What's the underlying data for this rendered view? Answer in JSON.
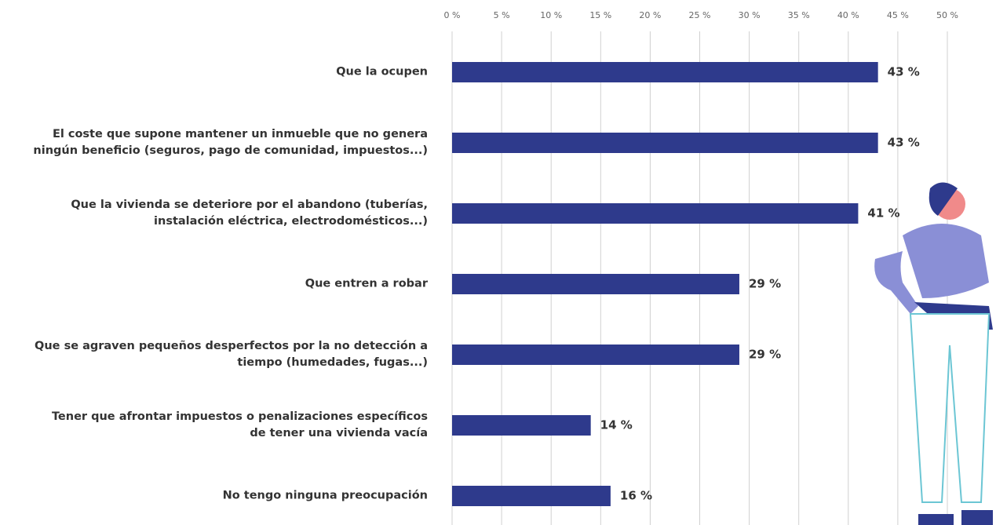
{
  "chart_data": {
    "type": "bar",
    "orientation": "horizontal",
    "categories": [
      "Que la ocupen",
      "El coste que supone mantener un inmueble que no genera\nningún beneficio (seguros, pago de comunidad, impuestos...)",
      "Que la vivienda se deteriore por el abandono (tuberías,\ninstalación eléctrica, electrodomésticos...)",
      "Que entren a robar",
      "Que se agraven pequeños desperfectos por la no detección a\ntiempo (humedades, fugas...)",
      "Tener que afrontar impuestos o penalizaciones específicos\nde tener una vivienda vacía",
      "No tengo ninguna preocupación"
    ],
    "values": [
      43,
      43,
      41,
      29,
      29,
      14,
      16
    ],
    "value_labels": [
      "43 %",
      "43 %",
      "41 %",
      "29 %",
      "29 %",
      "14 %",
      "16 %"
    ],
    "color": "#2e3a8c",
    "xlim": [
      0,
      50
    ],
    "xticks": [
      {
        "value": 0,
        "label": "0 %"
      },
      {
        "value": 5,
        "label": "5 %"
      },
      {
        "value": 10,
        "label": "10 %"
      },
      {
        "value": 15,
        "label": "15 %"
      },
      {
        "value": 20,
        "label": "20 %"
      },
      {
        "value": 25,
        "label": "25 %"
      },
      {
        "value": 30,
        "label": "30 %"
      },
      {
        "value": 35,
        "label": "35 %"
      },
      {
        "value": 40,
        "label": "40 %"
      },
      {
        "value": 45,
        "label": "45 %"
      },
      {
        "value": 50,
        "label": "50 %"
      }
    ],
    "grid": true
  }
}
